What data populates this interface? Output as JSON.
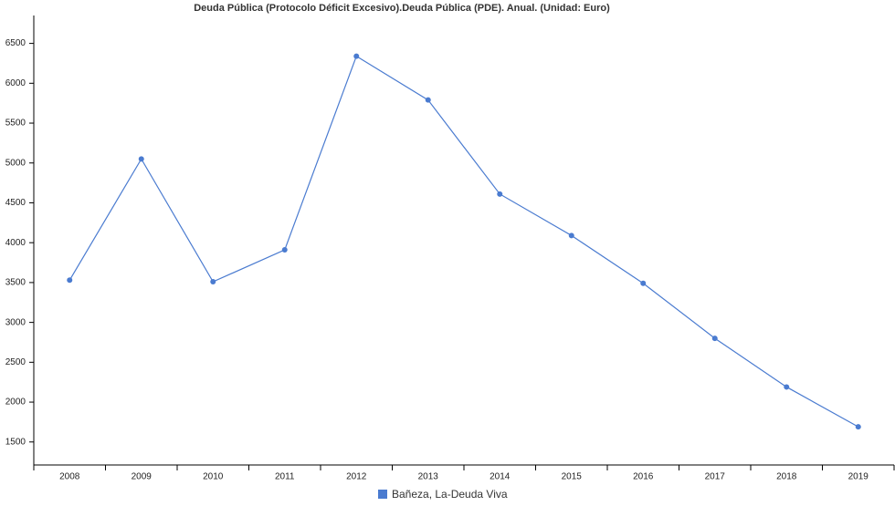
{
  "chart_data": {
    "type": "line",
    "title": "Deuda Pública (Protocolo Déficit Excesivo).Deuda Pública (PDE). Anual. (Unidad: Euro)",
    "categories": [
      "2008",
      "2009",
      "2010",
      "2011",
      "2012",
      "2013",
      "2014",
      "2015",
      "2016",
      "2017",
      "2018",
      "2019"
    ],
    "series": [
      {
        "name": "Bañeza, La-Deuda Viva",
        "color": "#4a7bd0",
        "values": [
          3530,
          5050,
          3510,
          3910,
          6340,
          5790,
          4610,
          4090,
          3490,
          2800,
          2190,
          1690
        ]
      }
    ],
    "ylim": [
      1200,
      6850
    ],
    "yticks": [
      1500,
      2000,
      2500,
      3000,
      3500,
      4000,
      4500,
      5000,
      5500,
      6000,
      6500
    ],
    "grid": false
  }
}
